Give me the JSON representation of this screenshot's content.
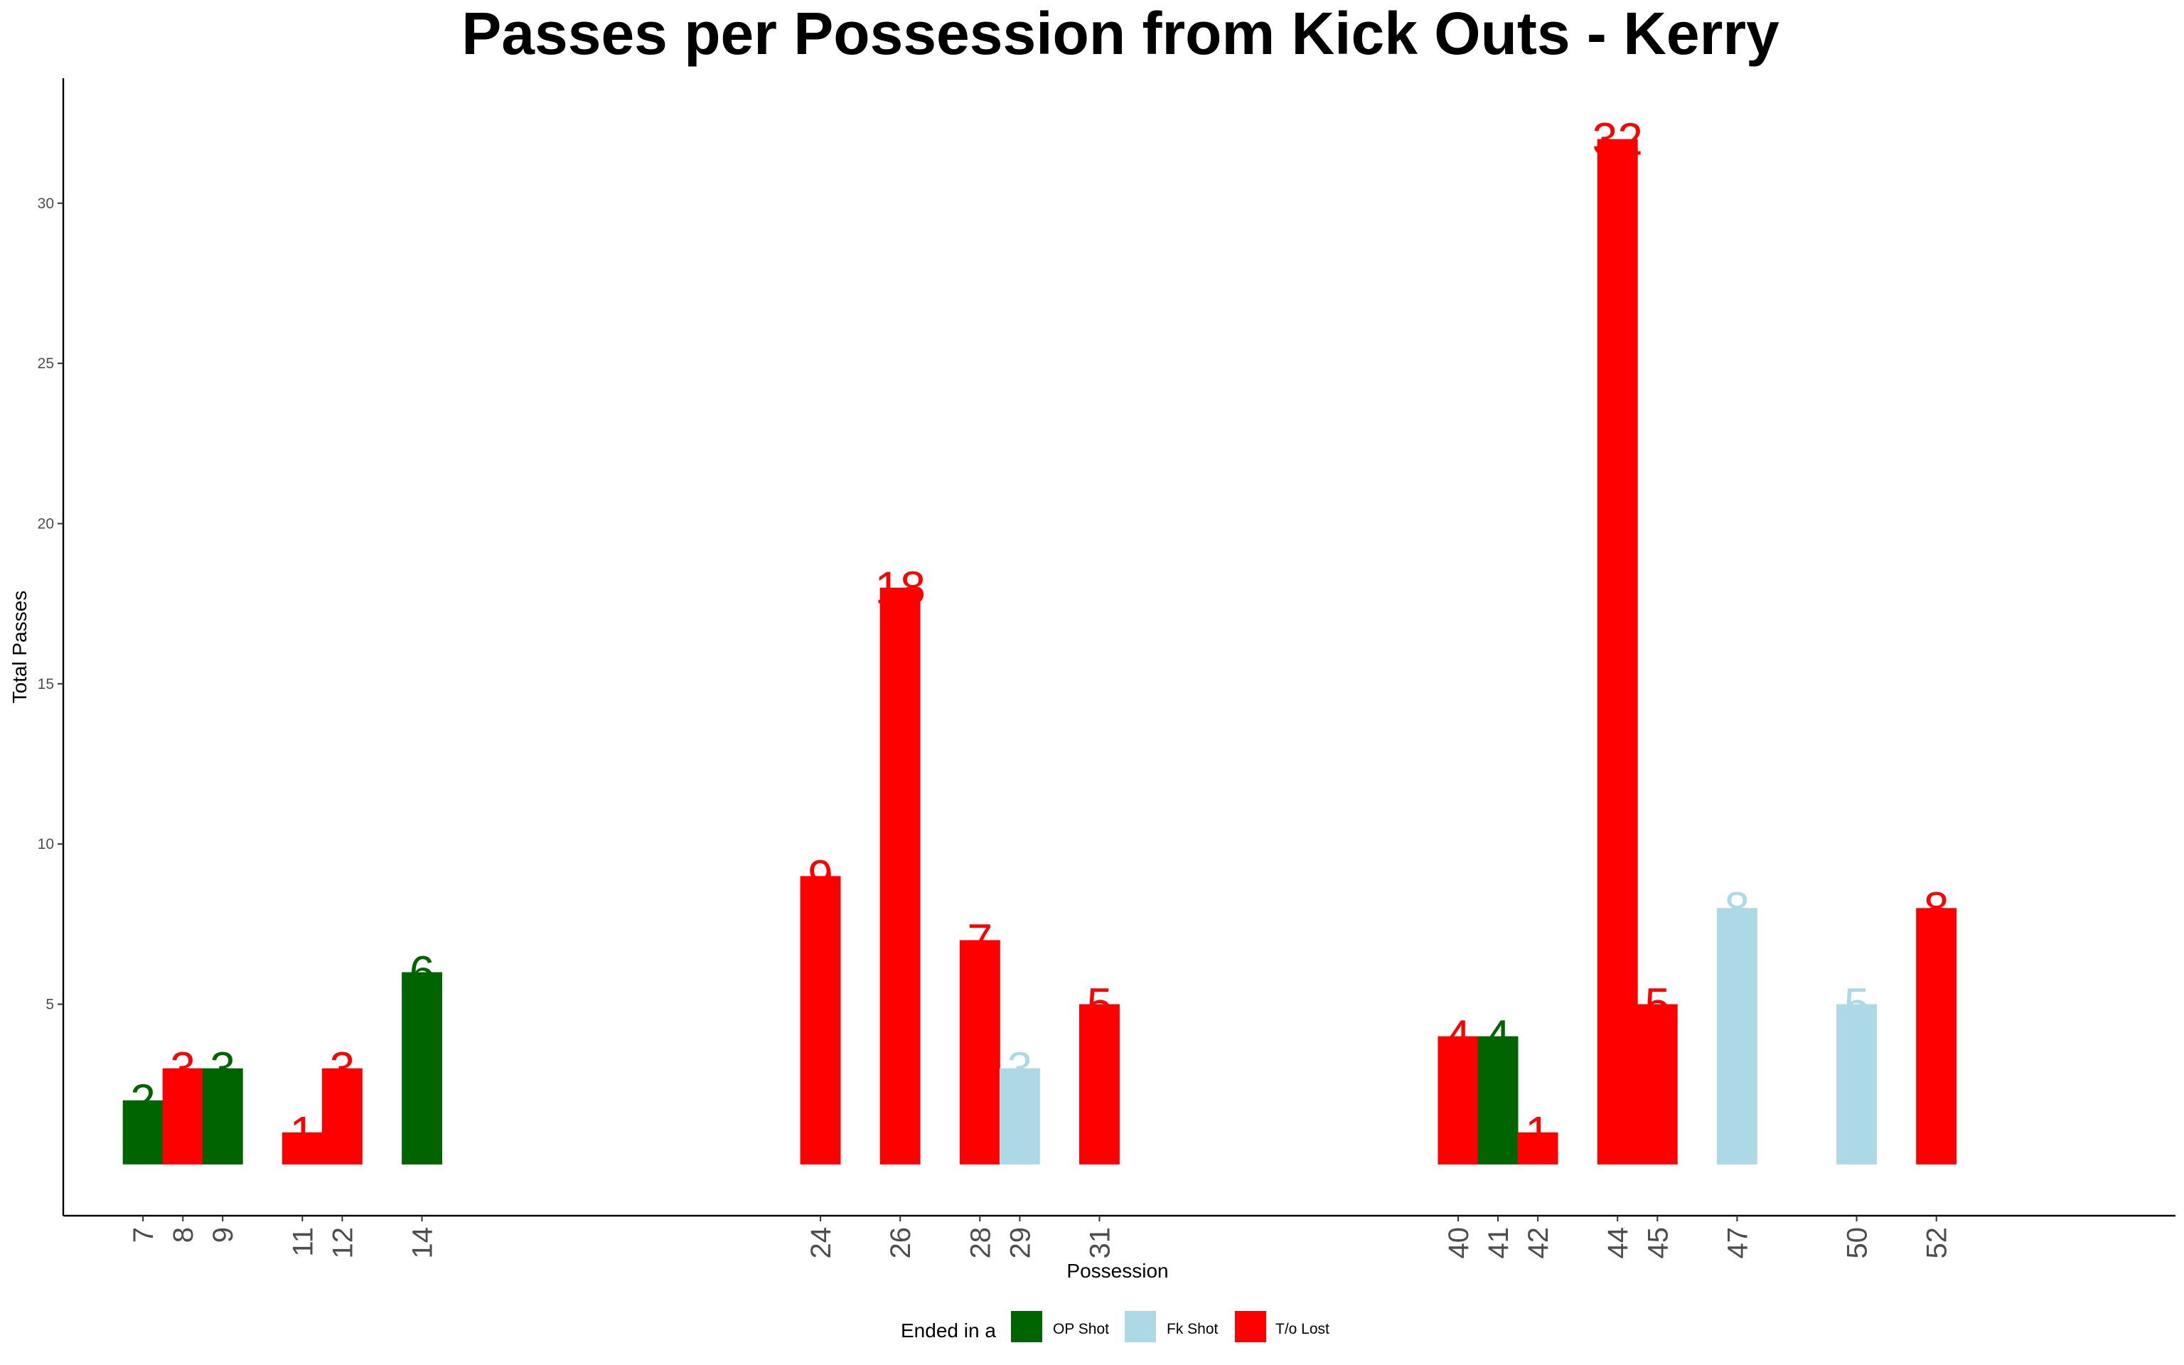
{
  "chart_data": {
    "type": "bar",
    "title": "Passes per Possession from Kick Outs - Kerry",
    "xlabel": "Possession",
    "ylabel": "Total Passes",
    "x_range": [
      5,
      58
    ],
    "ylim": [
      -1.6,
      33.9
    ],
    "yticks": [
      5,
      10,
      15,
      20,
      25,
      30
    ],
    "grid": false,
    "legend": {
      "title": "Ended in a",
      "position": "bottom",
      "entries": [
        {
          "label": "OP Shot",
          "color": "#006400"
        },
        {
          "label": "Fk Shot",
          "color": "#ADD8E6"
        },
        {
          "label": "T/o Lost",
          "color": "#FF0000"
        }
      ]
    },
    "categories": [
      "7",
      "8",
      "9",
      "11",
      "12",
      "14",
      "24",
      "26",
      "28",
      "29",
      "31",
      "40",
      "41",
      "42",
      "44",
      "45",
      "47",
      "50",
      "52"
    ],
    "points": [
      {
        "x": 7,
        "y": 2,
        "label": "2",
        "outcome": "OP Shot"
      },
      {
        "x": 8,
        "y": 3,
        "label": "3",
        "outcome": "T/o Lost"
      },
      {
        "x": 9,
        "y": 3,
        "label": "3",
        "outcome": "OP Shot"
      },
      {
        "x": 11,
        "y": 1,
        "label": "1",
        "outcome": "T/o Lost"
      },
      {
        "x": 12,
        "y": 3,
        "label": "3",
        "outcome": "T/o Lost"
      },
      {
        "x": 14,
        "y": 6,
        "label": "6",
        "outcome": "OP Shot"
      },
      {
        "x": 24,
        "y": 9,
        "label": "9",
        "outcome": "T/o Lost"
      },
      {
        "x": 26,
        "y": 18,
        "label": "18",
        "outcome": "T/o Lost"
      },
      {
        "x": 28,
        "y": 7,
        "label": "7",
        "outcome": "T/o Lost"
      },
      {
        "x": 29,
        "y": 3,
        "label": "3",
        "outcome": "Fk Shot"
      },
      {
        "x": 31,
        "y": 5,
        "label": "5",
        "outcome": "T/o Lost"
      },
      {
        "x": 40,
        "y": 4,
        "label": "4",
        "outcome": "T/o Lost"
      },
      {
        "x": 41,
        "y": 4,
        "label": "4",
        "outcome": "OP Shot"
      },
      {
        "x": 42,
        "y": 1,
        "label": "1",
        "outcome": "T/o Lost"
      },
      {
        "x": 44,
        "y": 32,
        "label": "32",
        "outcome": "T/o Lost"
      },
      {
        "x": 45,
        "y": 5,
        "label": "5",
        "outcome": "T/o Lost"
      },
      {
        "x": 47,
        "y": 8,
        "label": "8",
        "outcome": "Fk Shot"
      },
      {
        "x": 50,
        "y": 5,
        "label": "5",
        "outcome": "Fk Shot"
      },
      {
        "x": 52,
        "y": 8,
        "label": "8",
        "outcome": "T/o Lost"
      }
    ]
  }
}
